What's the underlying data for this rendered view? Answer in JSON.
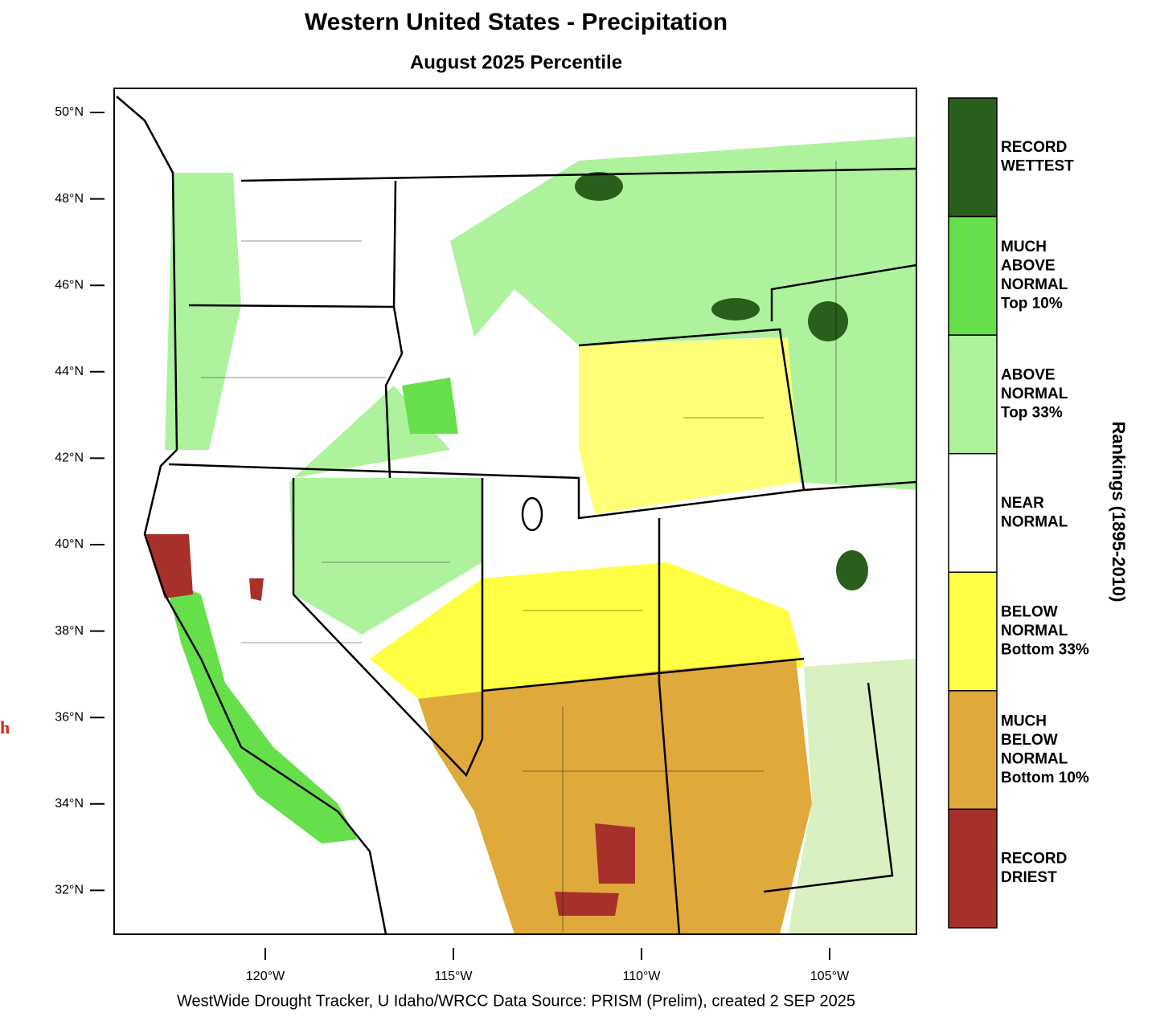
{
  "header": {
    "title": "Western United States - Precipitation",
    "subtitle": "August 2025 Percentile"
  },
  "map": {
    "lat_ticks": [
      "50°N",
      "48°N",
      "46°N",
      "44°N",
      "42°N",
      "40°N",
      "38°N",
      "36°N",
      "34°N",
      "32°N"
    ],
    "lon_ticks": [
      "120°W",
      "115°W",
      "110°W",
      "105°W"
    ]
  },
  "legend": {
    "title": "Rankings (1895-2010)",
    "items": [
      {
        "label": [
          "RECORD",
          "WETTEST"
        ],
        "color": "#2a5e1c"
      },
      {
        "label": [
          "MUCH",
          "ABOVE",
          "NORMAL",
          "Top 10%"
        ],
        "color": "#66e04a"
      },
      {
        "label": [
          "ABOVE",
          "NORMAL",
          "Top 33%"
        ],
        "color": "#aef29e"
      },
      {
        "label": [
          "NEAR",
          "NORMAL"
        ],
        "color": "#ffffff"
      },
      {
        "label": [
          "BELOW",
          "NORMAL",
          "Bottom 33%"
        ],
        "color": "#ffff44"
      },
      {
        "label": [
          "MUCH",
          "BELOW",
          "NORMAL",
          "Bottom 10%"
        ],
        "color": "#e0a93c"
      },
      {
        "label": [
          "RECORD",
          "DRIEST"
        ],
        "color": "#a8302a"
      }
    ]
  },
  "footer": "WestWide Drought Tracker, U Idaho/WRCC Data Source: PRISM (Prelim), created  2 SEP 2025",
  "stray_text": "h"
}
